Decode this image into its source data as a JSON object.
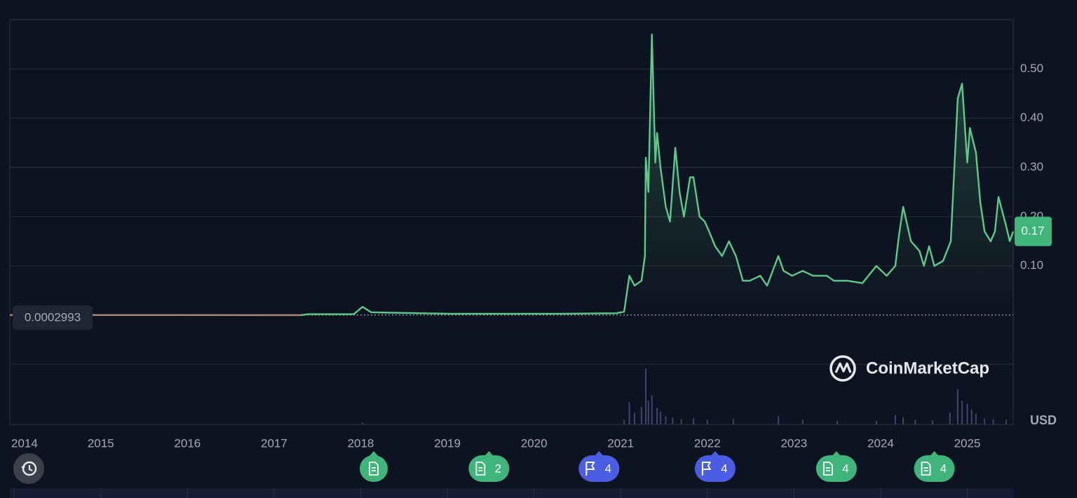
{
  "chart_data": {
    "type": "line",
    "x": [
      2013.95,
      2017.31,
      2017.39,
      2017.92,
      2018.02,
      2018.12,
      2018.37,
      2018.69,
      2019.01,
      2019.5,
      2020.31,
      2020.95,
      2021.04,
      2021.1,
      2021.16,
      2021.24,
      2021.28,
      2021.29,
      2021.32,
      2021.36,
      2021.4,
      2021.42,
      2021.46,
      2021.52,
      2021.57,
      2021.63,
      2021.68,
      2021.73,
      2021.8,
      2021.84,
      2021.91,
      2021.97,
      2022.02,
      2022.09,
      2022.17,
      2022.25,
      2022.33,
      2022.41,
      2022.49,
      2022.61,
      2022.69,
      2022.82,
      2022.88,
      2022.98,
      2023.1,
      2023.22,
      2023.38,
      2023.46,
      2023.62,
      2023.79,
      2023.95,
      2024.07,
      2024.17,
      2024.21,
      2024.26,
      2024.35,
      2024.45,
      2024.5,
      2024.56,
      2024.62,
      2024.72,
      2024.81,
      2024.89,
      2024.94,
      2025.0,
      2025.03,
      2025.1,
      2025.15,
      2025.2,
      2025.27,
      2025.32,
      2025.36,
      2025.45,
      2025.49,
      2025.53
    ],
    "series": [
      {
        "color": "#5ccb8a",
        "values": [
          0.0002993,
          0.0002,
          0.002,
          0.002,
          0.017,
          0.006,
          0.005,
          0.004,
          0.003,
          0.003,
          0.003,
          0.004,
          0.007,
          0.08,
          0.06,
          0.07,
          0.12,
          0.32,
          0.25,
          0.57,
          0.31,
          0.37,
          0.3,
          0.22,
          0.19,
          0.34,
          0.25,
          0.2,
          0.28,
          0.28,
          0.2,
          0.19,
          0.17,
          0.14,
          0.12,
          0.15,
          0.12,
          0.07,
          0.07,
          0.08,
          0.06,
          0.12,
          0.09,
          0.08,
          0.09,
          0.08,
          0.08,
          0.07,
          0.07,
          0.065,
          0.1,
          0.08,
          0.1,
          0.16,
          0.22,
          0.15,
          0.13,
          0.1,
          0.14,
          0.1,
          0.11,
          0.15,
          0.44,
          0.47,
          0.31,
          0.38,
          0.33,
          0.23,
          0.17,
          0.15,
          0.17,
          0.24,
          0.18,
          0.15,
          0.17
        ]
      }
    ],
    "down_color": "#e0605f",
    "start_price": 0.0002993,
    "last_price": 0.17,
    "currency": "USD",
    "brand": "CoinMarketCap",
    "xlim": [
      2013.95,
      2025.53
    ],
    "xticks": [
      2014,
      2015,
      2016,
      2017,
      2018,
      2019,
      2020,
      2021,
      2022,
      2023,
      2024,
      2025
    ],
    "ylim": [
      0,
      0.6
    ],
    "yticks": [
      {
        "value": 0.1,
        "label": "0.10"
      },
      {
        "value": 0.2,
        "label": "0.20"
      },
      {
        "value": 0.3,
        "label": "0.30"
      },
      {
        "value": 0.4,
        "label": "0.40"
      },
      {
        "value": 0.5,
        "label": "0.50"
      }
    ],
    "grid": true,
    "volume": {
      "color": "#3d4470",
      "ylim": [
        0,
        100
      ],
      "x": [
        2018.02,
        2021.04,
        2021.1,
        2021.16,
        2021.24,
        2021.29,
        2021.32,
        2021.36,
        2021.42,
        2021.46,
        2021.52,
        2021.6,
        2021.7,
        2021.84,
        2022.0,
        2022.3,
        2022.82,
        2023.1,
        2023.5,
        2023.95,
        2024.17,
        2024.26,
        2024.4,
        2024.6,
        2024.8,
        2024.89,
        2024.94,
        2025.0,
        2025.05,
        2025.1,
        2025.2,
        2025.3,
        2025.45
      ],
      "values": [
        3,
        8,
        38,
        20,
        30,
        95,
        40,
        50,
        28,
        22,
        14,
        12,
        9,
        11,
        8,
        10,
        14,
        8,
        6,
        6,
        16,
        12,
        8,
        7,
        20,
        60,
        40,
        35,
        25,
        18,
        10,
        9,
        8
      ]
    },
    "events": [
      {
        "x": 2018.15,
        "kind": "news"
      },
      {
        "x": 2019.48,
        "kind": "news",
        "count": 2
      },
      {
        "x": 2020.75,
        "kind": "milestone",
        "count": 4
      },
      {
        "x": 2022.09,
        "kind": "milestone",
        "count": 4
      },
      {
        "x": 2023.49,
        "kind": "news",
        "count": 4
      },
      {
        "x": 2024.62,
        "kind": "news",
        "count": 4
      }
    ]
  }
}
